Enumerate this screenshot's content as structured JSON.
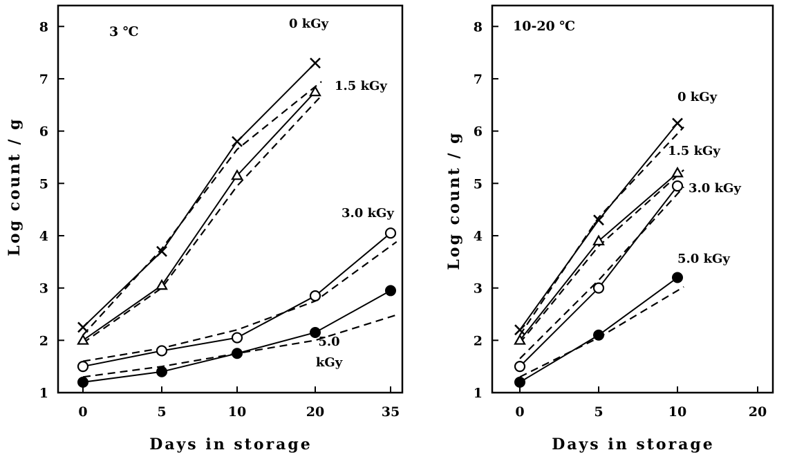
{
  "chart_data": [
    {
      "type": "line",
      "title": "3 ℃",
      "xlabel": "Days in storage",
      "ylabel": "Log count / g",
      "x_categories": [
        "0",
        "5",
        "10",
        "20",
        "35"
      ],
      "y_ticks": [
        "1",
        "2",
        "3",
        "4",
        "5",
        "6",
        "7",
        "8"
      ],
      "ylim": [
        1,
        8.4
      ],
      "grid": false,
      "series": [
        {
          "name": "0 kGy",
          "marker": "cross",
          "values": [
            2.25,
            3.7,
            5.8,
            7.3,
            null
          ],
          "fit": [
            2.1,
            3.75,
            5.65,
            6.85,
            null
          ]
        },
        {
          "name": "1.5 kGy",
          "marker": "triangle-open",
          "values": [
            2.0,
            3.05,
            5.15,
            6.75,
            null
          ],
          "fit": [
            1.95,
            3.0,
            4.95,
            6.55,
            null
          ]
        },
        {
          "name": "3.0 kGy",
          "marker": "circle-open",
          "values": [
            1.5,
            1.8,
            2.05,
            2.85,
            4.05
          ],
          "fit": [
            1.6,
            1.85,
            2.2,
            2.75,
            3.8
          ]
        },
        {
          "name": "5.0\nkGy",
          "label_lines": [
            "5.0",
            "kGy"
          ],
          "marker": "circle-filled",
          "values": [
            1.2,
            1.4,
            1.75,
            2.15,
            2.95
          ],
          "fit": [
            1.3,
            1.5,
            1.75,
            2.0,
            2.45
          ]
        }
      ]
    },
    {
      "type": "line",
      "title": "10-20 ℃",
      "xlabel": "Days in storage",
      "ylabel": "Log count / g",
      "x_categories": [
        "0",
        "5",
        "10",
        "20"
      ],
      "y_ticks": [
        "1",
        "2",
        "3",
        "4",
        "5",
        "6",
        "7",
        "8"
      ],
      "ylim": [
        1,
        8.4
      ],
      "grid": false,
      "series": [
        {
          "name": "0 kGy",
          "marker": "cross",
          "values": [
            2.2,
            4.3,
            6.15,
            null
          ],
          "fit": [
            2.1,
            4.35,
            5.95,
            null
          ]
        },
        {
          "name": "1.5 kGy",
          "marker": "triangle-open",
          "values": [
            2.0,
            3.9,
            5.2,
            null
          ],
          "fit": [
            1.95,
            3.8,
            5.15,
            null
          ]
        },
        {
          "name": "3.0 kGy",
          "marker": "circle-open",
          "values": [
            1.5,
            3.0,
            4.95,
            null
          ],
          "fit": [
            1.65,
            3.15,
            4.8,
            null
          ]
        },
        {
          "name": "5.0 kGy",
          "marker": "circle-filled",
          "values": [
            1.2,
            2.1,
            3.2,
            null
          ],
          "fit": [
            1.3,
            2.05,
            2.95,
            null
          ]
        }
      ]
    }
  ]
}
